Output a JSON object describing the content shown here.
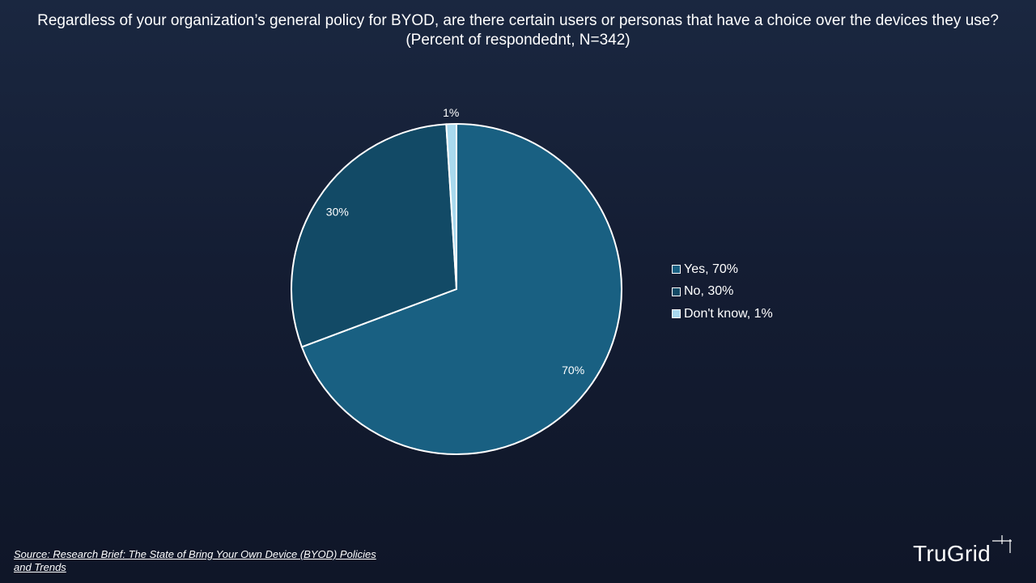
{
  "title": "Regardless of your organization’s general policy for BYOD, are there certain users or personas that have a choice over the devices they use? (Percent of respondednt, N=342)",
  "chart_data": {
    "type": "pie",
    "title": "Regardless of your organization’s general policy for BYOD, are there certain users or personas that have a choice over the devices they use? (Percent of respondednt, N=342)",
    "slices": [
      {
        "label": "Yes",
        "value": 70,
        "data_label": "70%",
        "legend_label": "Yes, 70%",
        "color": "#196082"
      },
      {
        "label": "No",
        "value": 30,
        "data_label": "30%",
        "legend_label": "No, 30%",
        "color": "#124a66"
      },
      {
        "label": "Don't know",
        "value": 1,
        "data_label": "1%",
        "legend_label": "Don't know, 1%",
        "color": "#a9d9ee"
      }
    ],
    "legend_position": "right",
    "slice_border_color": "#ffffff"
  },
  "source": "Source: Research Brief: The State of Bring Your Own Device (BYOD) Policies and Trends",
  "logo": {
    "text": "TruGrid",
    "color": "#ffffff"
  }
}
